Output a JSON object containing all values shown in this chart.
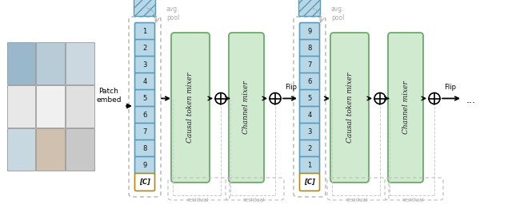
{
  "fig_width": 6.4,
  "fig_height": 2.66,
  "dpi": 100,
  "bg_color": "#ffffff",
  "token_box_fc": "#b8d8e8",
  "token_box_ec": "#5a9ab8",
  "cls_box_fc": "#ffffff",
  "cls_box_ec": "#b8860b",
  "mixer_fc": "#d0eacf",
  "mixer_ec": "#6aaa6a",
  "hatch_fc": "#b8d8e8",
  "hatch_ec": "#5a9ab8",
  "dashed_ec": "#aaaaaa",
  "residual_color": "#aaaaaa",
  "avg_pool_color": "#aaaaaa",
  "token_labels_block1": [
    "1",
    "2",
    "3",
    "4",
    "5",
    "6",
    "7",
    "8",
    "9",
    "[C]"
  ],
  "token_labels_block2": [
    "9",
    "8",
    "7",
    "6",
    "5",
    "4",
    "3",
    "2",
    "1",
    "[C]"
  ],
  "grid_colors_top": [
    "#9ab8cc",
    "#b8ccd8",
    "#ccd8e0"
  ],
  "grid_colors_mid": [
    "#e8e8e8",
    "#f0f0f0",
    "#e0e0e0"
  ],
  "grid_colors_bot": [
    "#c8d8e0",
    "#d0c0b0",
    "#c8c8c8"
  ]
}
